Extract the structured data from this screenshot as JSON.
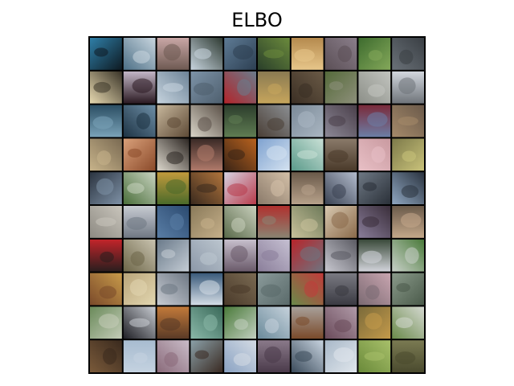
{
  "figure": {
    "title": "ELBO"
  },
  "sample_grid": {
    "rows": 10,
    "cols": 10,
    "tiles": [
      [
        [
          "#2f7fa8",
          "#0e1a22"
        ],
        [
          "#4c6f86",
          "#c9d6df"
        ],
        [
          "#c9a7a6",
          "#6e5a52"
        ],
        [
          "#2e3a32",
          "#c8d5df"
        ],
        [
          "#5e7b95",
          "#2d3f52"
        ],
        [
          "#2a3f2a",
          "#6b8a3c"
        ],
        [
          "#b58a4e",
          "#e7c68a"
        ],
        [
          "#8a7e8a",
          "#5b4f56"
        ],
        [
          "#3d6b2e",
          "#84a85a"
        ],
        [
          "#6a7178",
          "#3a3f44"
        ]
      ],
      [
        [
          "#e7d9b0",
          "#3a3428"
        ],
        [
          "#c3b7c7",
          "#2b1a22"
        ],
        [
          "#6d8397",
          "#c6d3de"
        ],
        [
          "#7d93a8",
          "#4e5f6e"
        ],
        [
          "#b3242a",
          "#6a7c8c"
        ],
        [
          "#8a7a52",
          "#c6a55c"
        ],
        [
          "#6a5a46",
          "#3b2f24"
        ],
        [
          "#556a3a",
          "#8d8f7a"
        ],
        [
          "#8c8f88",
          "#c2c4bf"
        ],
        [
          "#d2d7de",
          "#6f747a"
        ]
      ],
      [
        [
          "#2b4e63",
          "#7aa2b8"
        ],
        [
          "#6d8ea6",
          "#1e3344"
        ],
        [
          "#c7b79c",
          "#5e4a36"
        ],
        [
          "#d9d4c8",
          "#5b5148"
        ],
        [
          "#2c3d2c",
          "#5f7c52"
        ],
        [
          "#8b8e92",
          "#4a3f36"
        ],
        [
          "#7b8a98",
          "#aab6c2"
        ],
        [
          "#8c8896",
          "#4a3f4a"
        ],
        [
          "#7a2a3a",
          "#6c7ea6"
        ],
        [
          "#6b5a4a",
          "#a58a6a"
        ]
      ],
      [
        [
          "#7a6a52",
          "#c7b38a"
        ],
        [
          "#d9a07a",
          "#8a4a2a"
        ],
        [
          "#dcd7cc",
          "#2c2622"
        ],
        [
          "#3a2a26",
          "#b07a6a"
        ],
        [
          "#b8621e",
          "#3a2416"
        ],
        [
          "#7fa2d0",
          "#d4e2f0"
        ],
        [
          "#5a9a8a",
          "#c9e0d6"
        ],
        [
          "#8a7a6a",
          "#4a3a2a"
        ],
        [
          "#c99aa0",
          "#e8c0c6"
        ],
        [
          "#7d7a4a",
          "#c9c27a"
        ]
      ],
      [
        [
          "#2b3440",
          "#7e91a6"
        ],
        [
          "#4a6e3a",
          "#c8d3c0"
        ],
        [
          "#c19a3c",
          "#4a6a2a"
        ],
        [
          "#b0743c",
          "#3a2a1e"
        ],
        [
          "#d7d3e2",
          "#b83a4a"
        ],
        [
          "#8a7a6a",
          "#d4c0a8"
        ],
        [
          "#6a5a4a",
          "#b7a18a"
        ],
        [
          "#b3bccd",
          "#3a4252"
        ],
        [
          "#6e7884",
          "#2a3038"
        ],
        [
          "#8fa6c0",
          "#2b3440"
        ]
      ],
      [
        [
          "#8d8a82",
          "#c9c5bc"
        ],
        [
          "#c7cbd2",
          "#707884"
        ],
        [
          "#2b4a70",
          "#5a7ea6"
        ],
        [
          "#8a7a5a",
          "#c6b08a"
        ],
        [
          "#5a6a4a",
          "#c8cfbc"
        ],
        [
          "#b0302e",
          "#8a8472"
        ],
        [
          "#6e7a5a",
          "#c9c19a"
        ],
        [
          "#d8c8b0",
          "#8a6a4a"
        ],
        [
          "#8a7e9a",
          "#3a2e3a"
        ],
        [
          "#6a5a4a",
          "#c4a88a"
        ]
      ],
      [
        [
          "#c2242a",
          "#2a1e1e"
        ],
        [
          "#c9c3b0",
          "#6d6648"
        ],
        [
          "#6a7a8a",
          "#c4ccd4"
        ],
        [
          "#8c98a8",
          "#bcc6cf"
        ],
        [
          "#c7bfcc",
          "#6a5a6a"
        ],
        [
          "#c6c0d2",
          "#8a7e9a"
        ],
        [
          "#b8242a",
          "#6e7480"
        ],
        [
          "#c8c8d0",
          "#5a5a62"
        ],
        [
          "#3a4a3a",
          "#d2d4da"
        ],
        [
          "#4a7a3a",
          "#c8d0c8"
        ]
      ],
      [
        [
          "#c89a4a",
          "#7a4a2a"
        ],
        [
          "#b9a57a",
          "#e2d6b0"
        ],
        [
          "#c7cbd2",
          "#6e7884"
        ],
        [
          "#3a5a7a",
          "#d4dde6"
        ],
        [
          "#7a6a52",
          "#4a3a2a"
        ],
        [
          "#8a9a9a",
          "#5a6a6a"
        ],
        [
          "#6a8a4a",
          "#c23a3a"
        ],
        [
          "#7a7a82",
          "#3a3a42"
        ],
        [
          "#c9a5b0",
          "#7a6a72"
        ],
        [
          "#8a9a8a",
          "#4a5a4a"
        ]
      ],
      [
        [
          "#6a8a5a",
          "#c4ccb8"
        ],
        [
          "#1e1e24",
          "#c8ccd2"
        ],
        [
          "#c27a3a",
          "#5a3a26"
        ],
        [
          "#3a6a5a",
          "#8ab8a8"
        ],
        [
          "#4a7a3a",
          "#c2cfc0"
        ],
        [
          "#6a8a9a",
          "#c6d2dc"
        ],
        [
          "#a8a09a",
          "#7a4a2a"
        ],
        [
          "#b09aa8",
          "#6a4a5a"
        ],
        [
          "#7a6a3a",
          "#c49a4a"
        ],
        [
          "#6a8a4a",
          "#d4d8d0"
        ]
      ],
      [
        [
          "#7a5a3a",
          "#3a2a1e"
        ],
        [
          "#a8bcd0",
          "#c4d2e0"
        ],
        [
          "#c9bcc8",
          "#8a6a7a"
        ],
        [
          "#8aa0a8",
          "#3a2a22"
        ],
        [
          "#8aa2c2",
          "#d4dbe4"
        ],
        [
          "#8a7a8a",
          "#4a3a4a"
        ],
        [
          "#c8d4e0",
          "#3a4a5a"
        ],
        [
          "#a8b8c8",
          "#e0e6ec"
        ],
        [
          "#6a8a3a",
          "#a8c06a"
        ],
        [
          "#7a7a52",
          "#4a4a2e"
        ]
      ]
    ]
  }
}
